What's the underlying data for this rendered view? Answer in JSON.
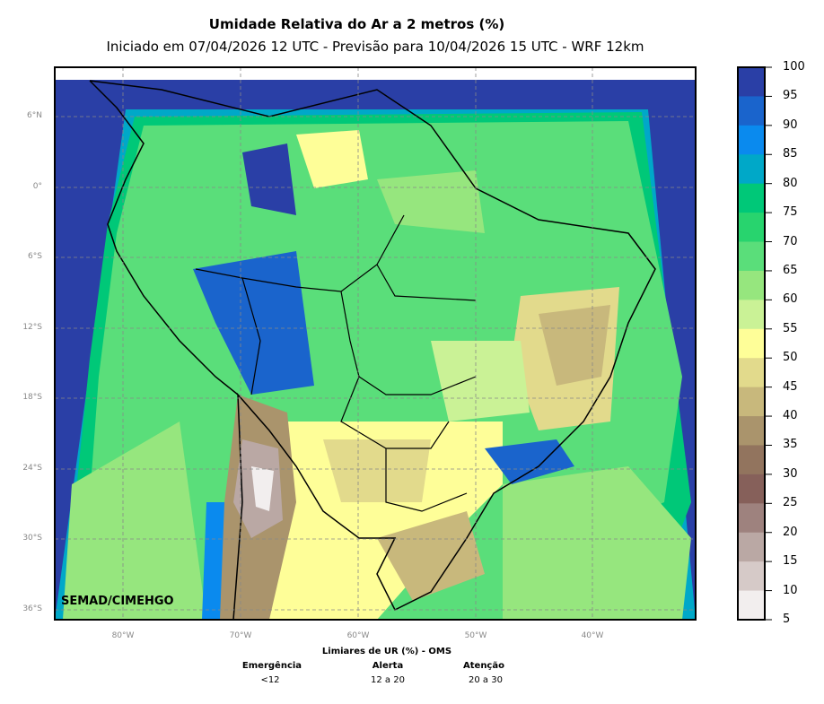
{
  "title": "Umidade Relativa do Ar a 2 metros (%)",
  "subtitle": "Iniciado em 07/04/2026 12 UTC - Previsão para 10/04/2026 15 UTC - WRF 12km",
  "credit": "SEMAD/CIMEHGO",
  "lat_labels": [
    "6°N",
    "0°",
    "6°S",
    "12°S",
    "18°S",
    "24°S",
    "30°S",
    "36°S"
  ],
  "lon_labels": [
    "80°W",
    "70°W",
    "60°W",
    "50°W",
    "40°W"
  ],
  "colorbar": {
    "ticks": [
      "100",
      "95",
      "90",
      "85",
      "80",
      "75",
      "70",
      "65",
      "60",
      "55",
      "50",
      "45",
      "40",
      "35",
      "30",
      "25",
      "20",
      "15",
      "10",
      "5"
    ],
    "colors": [
      "#2a3fa6",
      "#1a64cc",
      "#0a8aee",
      "#00a8c8",
      "#00c878",
      "#28d46e",
      "#5ade7a",
      "#96e67e",
      "#caf296",
      "#fefe98",
      "#e2da8c",
      "#c8b87c",
      "#aa946c",
      "#92745e",
      "#86605a",
      "#9e827e",
      "#baa8a4",
      "#d6cac8",
      "#f2eeee"
    ]
  },
  "legend": {
    "title": "Limiares de UR (%) - OMS",
    "items": [
      {
        "label": "Emergência",
        "range": "<12"
      },
      {
        "label": "Alerta",
        "range": "12 a 20"
      },
      {
        "label": "Atenção",
        "range": "20 a 30"
      }
    ]
  }
}
